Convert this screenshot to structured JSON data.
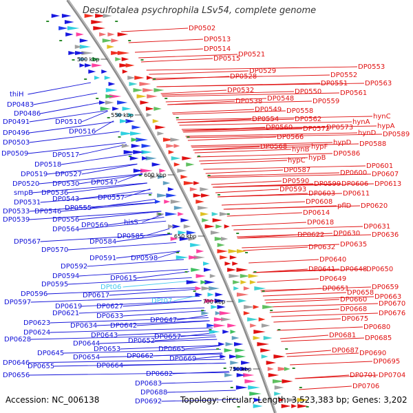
{
  "title": "Desulfotalea psychrophila LSv54, complete genome",
  "footer": {
    "accession": "Accession: NC_006138",
    "topology": "Topology: circular; Length: 3,523,383 bp; Genes: 3,202"
  },
  "colors": {
    "left_labels": "#1010d8",
    "right_labels": "#e01010",
    "rna_labels": "#40c8f0",
    "backbone": "#888888",
    "ticks": "#2a8a2a"
  },
  "kbp_marks": [
    "500 kbp",
    "550 kbp",
    "600 kbp",
    "650 kbp",
    "700 kbp",
    "750 kbp"
  ],
  "left_labels": [
    "thiH",
    "DP0483",
    "DP0486",
    "DP0491",
    "DP0496",
    "DP0503",
    "DP0509",
    "DP0510",
    "DP0516",
    "DP0517",
    "DP0518",
    "DP0519",
    "DP0527",
    "DP0520",
    "smpB",
    "DP0536",
    "DP0530",
    "DP0531",
    "DP0543",
    "DP0547",
    "DP0533",
    "DP0546",
    "DP0555",
    "DP0557",
    "DP0539",
    "DP0556",
    "DP0564",
    "DP0569",
    "hisS",
    "DP0567",
    "DP0584",
    "DP0585",
    "DP0570",
    "DP0591",
    "DP0598",
    "DP0592",
    "DP0594",
    "DP0595",
    "DP0615",
    "DPt06",
    "DP0596",
    "DP0617",
    "DP0597",
    "DP0619",
    "DP0627",
    "DPt07",
    "DP0621",
    "DP0633",
    "DP0623",
    "DP0634",
    "DP0642",
    "DP0647",
    "DP0624",
    "DP0643",
    "DP0628",
    "DP0644",
    "DP0652",
    "DP0657",
    "DP0645",
    "DP0653",
    "DP0646",
    "DP0654",
    "DP0665",
    "DP0655",
    "DP0662",
    "DP0669",
    "DP0656",
    "DP0664",
    "DP0682",
    "DP0683",
    "DP0688",
    "DP0692"
  ],
  "right_labels": [
    "DP0502",
    "DP0513",
    "DP0514",
    "DP0515",
    "DP0521",
    "DP0528",
    "DP0529",
    "DP0532",
    "DP0538",
    "DP0548",
    "DP0549",
    "DP0550",
    "DP0551",
    "DP0552",
    "DP0553",
    "DP0554",
    "DP0558",
    "DP0559",
    "DP0561",
    "DP0563",
    "DP0560",
    "DP0562",
    "DP0566",
    "DP0572",
    "DP0573",
    "hynA",
    "hynC",
    "hypA",
    "DP0568",
    "hynB",
    "hypF",
    "hypD",
    "hynD",
    "DP0589",
    "hypC",
    "hypB",
    "DP0586",
    "DP0588",
    "DP0587",
    "DP0590",
    "DP0600",
    "DP0601",
    "DP0607",
    "DP0593",
    "DP0599",
    "DP0606",
    "DP0613",
    "DP0603",
    "DP0611",
    "DP0608",
    "pflD",
    "DP0620",
    "DP0614",
    "DP0618",
    "DP0622",
    "DP0630",
    "DP0631",
    "DP0636",
    "DP0632",
    "DP0635",
    "DP0640",
    "DP0641",
    "DP0648",
    "DP0650",
    "DP0649",
    "DP0651",
    "DP0658",
    "DP0659",
    "DP0660",
    "DP0663",
    "DP0668",
    "DP0670",
    "DP0676",
    "DP0675",
    "DP0680",
    "DP0681",
    "DP0685",
    "DP0687",
    "DP0690",
    "DP0695",
    "DP0701",
    "DP0704",
    "DP0706"
  ]
}
